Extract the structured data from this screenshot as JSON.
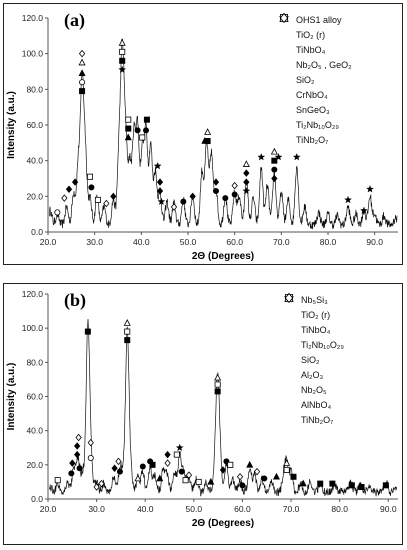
{
  "panels": [
    {
      "id": "a",
      "tag": "(a)",
      "xlabel": "2Θ (Degrees)",
      "ylabel": "Intensity (a.u.)",
      "xlim": [
        20,
        95
      ],
      "ylim": [
        0,
        120
      ],
      "xticks": [
        "20.0",
        "30.0",
        "40.0",
        "50.0",
        "60.0",
        "70.0",
        "80.0",
        "90.0"
      ],
      "yticks": [
        "0.0",
        "20.0",
        "40.0",
        "60.0",
        "80.0",
        "100.0",
        "120.0"
      ],
      "legend": [
        {
          "symbol": "star",
          "label": "OHS1 alloy"
        },
        {
          "symbol": "square-filled",
          "label": "TiO₂ (r)"
        },
        {
          "symbol": "triangle-filled",
          "label": "TiNbO₄"
        },
        {
          "symbol": "circle-filled",
          "label": "Nb₂O₅ , GeO₂"
        },
        {
          "symbol": "circle-open",
          "label": "SiO₂"
        },
        {
          "symbol": "triangle-open",
          "label": "CrNbO₄"
        },
        {
          "symbol": "square-open",
          "label": "SnGeO₃"
        },
        {
          "symbol": "diamond-filled",
          "label": "Ti₂Nb₁₀O₂₉"
        },
        {
          "symbol": "diamond-open",
          "label": "TiNb₂O₇"
        }
      ]
    },
    {
      "id": "b",
      "tag": "(b)",
      "xlabel": "2Θ (Degrees)",
      "ylabel": "Intensity (a.u.)",
      "xlim": [
        20,
        92
      ],
      "ylim": [
        0,
        120
      ],
      "xticks": [
        "20.0",
        "30.0",
        "40.0",
        "50.0",
        "60.0",
        "70.0",
        "80.0",
        "90.0"
      ],
      "yticks": [
        "0.0",
        "20.0",
        "40.0",
        "60.0",
        "80.0",
        "100.0",
        "120.0"
      ],
      "legend": [
        {
          "symbol": "star",
          "label": "Nb₅Si₃"
        },
        {
          "symbol": "square-filled",
          "label": "TiO₂ (r)"
        },
        {
          "symbol": "triangle-filled",
          "label": "TiNbO₄"
        },
        {
          "symbol": "circle-filled",
          "label": "Ti₂Nb₁₀O₂₉"
        },
        {
          "symbol": "circle-open",
          "label": "SiO₂"
        },
        {
          "symbol": "triangle-open",
          "label": "Al₂O₃"
        },
        {
          "symbol": "square-open",
          "label": "Nb₂O₅"
        },
        {
          "symbol": "diamond-filled",
          "label": "AlNbO₄"
        },
        {
          "symbol": "diamond-open",
          "label": "TiNb₂O₇"
        }
      ]
    }
  ],
  "chart_data": [
    {
      "type": "line",
      "panel": "a",
      "xlabel": "2Θ (Degrees)",
      "ylabel": "Intensity (a.u.)",
      "xlim": [
        20,
        95
      ],
      "ylim": [
        0,
        120
      ],
      "grid": false,
      "legend_position": "right",
      "peaks": [
        {
          "x": 20.5,
          "y": 8
        },
        {
          "x": 22,
          "y": 6
        },
        {
          "x": 24,
          "y": 10
        },
        {
          "x": 25.5,
          "y": 18
        },
        {
          "x": 26.5,
          "y": 35
        },
        {
          "x": 27.3,
          "y": 78
        },
        {
          "x": 28,
          "y": 40
        },
        {
          "x": 29,
          "y": 15
        },
        {
          "x": 30.5,
          "y": 16
        },
        {
          "x": 32,
          "y": 10
        },
        {
          "x": 34,
          "y": 14
        },
        {
          "x": 35.2,
          "y": 40
        },
        {
          "x": 35.9,
          "y": 92
        },
        {
          "x": 36.6,
          "y": 50
        },
        {
          "x": 37.5,
          "y": 35
        },
        {
          "x": 38.4,
          "y": 50
        },
        {
          "x": 39.2,
          "y": 55
        },
        {
          "x": 40.2,
          "y": 42
        },
        {
          "x": 41,
          "y": 53
        },
        {
          "x": 42,
          "y": 45
        },
        {
          "x": 43,
          "y": 30
        },
        {
          "x": 44,
          "y": 18
        },
        {
          "x": 45.5,
          "y": 13
        },
        {
          "x": 47,
          "y": 12
        },
        {
          "x": 49,
          "y": 14
        },
        {
          "x": 51,
          "y": 16
        },
        {
          "x": 53,
          "y": 30
        },
        {
          "x": 54,
          "y": 46
        },
        {
          "x": 55,
          "y": 40
        },
        {
          "x": 56,
          "y": 20
        },
        {
          "x": 58,
          "y": 16
        },
        {
          "x": 60,
          "y": 18
        },
        {
          "x": 61,
          "y": 16
        },
        {
          "x": 62.5,
          "y": 25
        },
        {
          "x": 64,
          "y": 15
        },
        {
          "x": 65.7,
          "y": 32
        },
        {
          "x": 67,
          "y": 22
        },
        {
          "x": 68.5,
          "y": 30
        },
        {
          "x": 70,
          "y": 18
        },
        {
          "x": 71.5,
          "y": 14
        },
        {
          "x": 73.3,
          "y": 33
        },
        {
          "x": 75,
          "y": 10
        },
        {
          "x": 78,
          "y": 7
        },
        {
          "x": 80,
          "y": 6
        },
        {
          "x": 82,
          "y": 5
        },
        {
          "x": 84.3,
          "y": 10
        },
        {
          "x": 86,
          "y": 6
        },
        {
          "x": 87.7,
          "y": 8
        },
        {
          "x": 89,
          "y": 16
        },
        {
          "x": 90,
          "y": 6
        },
        {
          "x": 92,
          "y": 5
        },
        {
          "x": 94.5,
          "y": 4
        }
      ],
      "markers": [
        {
          "symbol": "diamond-open",
          "x": 27.3,
          "y": 100
        },
        {
          "symbol": "triangle-open",
          "x": 27.3,
          "y": 95
        },
        {
          "symbol": "triangle-filled",
          "x": 27.3,
          "y": 89
        },
        {
          "symbol": "circle-open",
          "x": 27.3,
          "y": 84
        },
        {
          "symbol": "square-filled",
          "x": 27.3,
          "y": 79
        },
        {
          "symbol": "triangle-open",
          "x": 35.9,
          "y": 106
        },
        {
          "symbol": "square-open",
          "x": 35.9,
          "y": 101
        },
        {
          "symbol": "square-filled",
          "x": 35.9,
          "y": 96
        },
        {
          "symbol": "star",
          "x": 35.9,
          "y": 91
        },
        {
          "symbol": "square-open",
          "x": 37.2,
          "y": 63
        },
        {
          "symbol": "square-filled",
          "x": 37.2,
          "y": 58
        },
        {
          "symbol": "triangle-filled",
          "x": 37.2,
          "y": 53
        },
        {
          "symbol": "circle-filled",
          "x": 39.2,
          "y": 57
        },
        {
          "symbol": "square-open",
          "x": 40.2,
          "y": 53
        },
        {
          "symbol": "square-filled",
          "x": 41.2,
          "y": 63
        },
        {
          "symbol": "circle-filled",
          "x": 41,
          "y": 57
        },
        {
          "symbol": "star",
          "x": 43.5,
          "y": 37
        },
        {
          "symbol": "diamond-filled",
          "x": 44,
          "y": 28
        },
        {
          "symbol": "diamond-filled",
          "x": 44,
          "y": 23
        },
        {
          "symbol": "star",
          "x": 44.3,
          "y": 17
        },
        {
          "symbol": "triangle-open",
          "x": 54.2,
          "y": 56
        },
        {
          "symbol": "triangle-filled",
          "x": 53.6,
          "y": 51
        },
        {
          "symbol": "square-filled",
          "x": 54.2,
          "y": 51
        },
        {
          "symbol": "star",
          "x": 65.7,
          "y": 42
        },
        {
          "symbol": "triangle-open",
          "x": 62.5,
          "y": 38
        },
        {
          "symbol": "diamond-filled",
          "x": 62.5,
          "y": 33
        },
        {
          "symbol": "diamond-filled",
          "x": 62.5,
          "y": 28
        },
        {
          "symbol": "star",
          "x": 62.5,
          "y": 23
        },
        {
          "symbol": "triangle-open",
          "x": 68.5,
          "y": 45
        },
        {
          "symbol": "square-filled",
          "x": 68.5,
          "y": 40
        },
        {
          "symbol": "star",
          "x": 69.4,
          "y": 42
        },
        {
          "symbol": "circle-filled",
          "x": 68.5,
          "y": 35
        },
        {
          "symbol": "diamond-filled",
          "x": 68.5,
          "y": 30
        },
        {
          "symbol": "star",
          "x": 73.3,
          "y": 42
        },
        {
          "symbol": "star",
          "x": 84.3,
          "y": 18
        },
        {
          "symbol": "star",
          "x": 89,
          "y": 24
        },
        {
          "symbol": "star",
          "x": 87.7,
          "y": 12
        },
        {
          "symbol": "circle-open",
          "x": 22,
          "y": 11
        },
        {
          "symbol": "diamond-open",
          "x": 23.5,
          "y": 19
        },
        {
          "symbol": "diamond-filled",
          "x": 24.5,
          "y": 24
        },
        {
          "symbol": "diamond-filled",
          "x": 25.8,
          "y": 28
        },
        {
          "symbol": "square-open",
          "x": 29,
          "y": 31
        },
        {
          "symbol": "circle-filled",
          "x": 29.3,
          "y": 25
        },
        {
          "symbol": "square-open",
          "x": 30.7,
          "y": 18
        },
        {
          "symbol": "diamond-open",
          "x": 32.5,
          "y": 16
        },
        {
          "symbol": "diamond-filled",
          "x": 34,
          "y": 20
        },
        {
          "symbol": "diamond-open",
          "x": 47,
          "y": 14
        },
        {
          "symbol": "circle-filled",
          "x": 49,
          "y": 17
        },
        {
          "symbol": "diamond-filled",
          "x": 51,
          "y": 20
        },
        {
          "symbol": "circle-filled",
          "x": 56,
          "y": 23
        },
        {
          "symbol": "diamond-filled",
          "x": 56,
          "y": 28
        },
        {
          "symbol": "circle-filled",
          "x": 58,
          "y": 19
        },
        {
          "symbol": "circle-filled",
          "x": 60,
          "y": 21
        },
        {
          "symbol": "diamond-open",
          "x": 60,
          "y": 26
        }
      ]
    },
    {
      "type": "line",
      "panel": "b",
      "xlabel": "2Θ (Degrees)",
      "ylabel": "Intensity (a.u.)",
      "xlim": [
        20,
        92
      ],
      "ylim": [
        0,
        120
      ],
      "grid": false,
      "legend_position": "right",
      "peaks": [
        {
          "x": 20.5,
          "y": 3
        },
        {
          "x": 22,
          "y": 5
        },
        {
          "x": 24,
          "y": 6
        },
        {
          "x": 25.3,
          "y": 14
        },
        {
          "x": 26.2,
          "y": 20
        },
        {
          "x": 27.2,
          "y": 12
        },
        {
          "x": 28.2,
          "y": 96
        },
        {
          "x": 28.8,
          "y": 20
        },
        {
          "x": 30,
          "y": 6
        },
        {
          "x": 31.5,
          "y": 5
        },
        {
          "x": 33.5,
          "y": 8
        },
        {
          "x": 34.8,
          "y": 14
        },
        {
          "x": 35.5,
          "y": 10
        },
        {
          "x": 36.3,
          "y": 94
        },
        {
          "x": 37,
          "y": 12
        },
        {
          "x": 38.5,
          "y": 8
        },
        {
          "x": 39.5,
          "y": 12
        },
        {
          "x": 41,
          "y": 15
        },
        {
          "x": 42,
          "y": 10
        },
        {
          "x": 43.7,
          "y": 14
        },
        {
          "x": 44.5,
          "y": 10
        },
        {
          "x": 46,
          "y": 12
        },
        {
          "x": 47.1,
          "y": 24
        },
        {
          "x": 48,
          "y": 12
        },
        {
          "x": 49,
          "y": 9
        },
        {
          "x": 50.5,
          "y": 8
        },
        {
          "x": 52.5,
          "y": 6
        },
        {
          "x": 54.3,
          "y": 12
        },
        {
          "x": 54.9,
          "y": 65
        },
        {
          "x": 55.5,
          "y": 12
        },
        {
          "x": 56.7,
          "y": 15
        },
        {
          "x": 58,
          "y": 8
        },
        {
          "x": 59.5,
          "y": 6
        },
        {
          "x": 61.5,
          "y": 14
        },
        {
          "x": 62.5,
          "y": 10
        },
        {
          "x": 64,
          "y": 8
        },
        {
          "x": 66,
          "y": 6
        },
        {
          "x": 68.5,
          "y": 10
        },
        {
          "x": 69.1,
          "y": 16
        },
        {
          "x": 70,
          "y": 12
        },
        {
          "x": 72,
          "y": 5
        },
        {
          "x": 74,
          "y": 6
        },
        {
          "x": 76,
          "y": 5
        },
        {
          "x": 79,
          "y": 5
        },
        {
          "x": 82.3,
          "y": 6
        },
        {
          "x": 84.2,
          "y": 5
        },
        {
          "x": 86,
          "y": 4
        },
        {
          "x": 89.5,
          "y": 6
        },
        {
          "x": 91.5,
          "y": 3
        }
      ],
      "markers": [
        {
          "symbol": "square-filled",
          "x": 28.2,
          "y": 98
        },
        {
          "symbol": "triangle-open",
          "x": 36.3,
          "y": 103
        },
        {
          "symbol": "square-open",
          "x": 36.3,
          "y": 98
        },
        {
          "symbol": "square-filled",
          "x": 36.3,
          "y": 93
        },
        {
          "symbol": "triangle-open",
          "x": 54.9,
          "y": 71
        },
        {
          "symbol": "square-open",
          "x": 54.9,
          "y": 67
        },
        {
          "symbol": "square-filled",
          "x": 54.9,
          "y": 63
        },
        {
          "symbol": "square-open",
          "x": 22,
          "y": 11
        },
        {
          "symbol": "circle-filled",
          "x": 24.8,
          "y": 15
        },
        {
          "symbol": "diamond-filled",
          "x": 25,
          "y": 21
        },
        {
          "symbol": "diamond-filled",
          "x": 26,
          "y": 26
        },
        {
          "symbol": "diamond-filled",
          "x": 26,
          "y": 31
        },
        {
          "symbol": "diamond-open",
          "x": 26.3,
          "y": 36
        },
        {
          "symbol": "circle-filled",
          "x": 26.5,
          "y": 18
        },
        {
          "symbol": "diamond-open",
          "x": 28.8,
          "y": 33
        },
        {
          "symbol": "circle-open",
          "x": 28.8,
          "y": 24
        },
        {
          "symbol": "diamond-open",
          "x": 30,
          "y": 7
        },
        {
          "symbol": "diamond-open",
          "x": 31,
          "y": 9
        },
        {
          "symbol": "diamond-filled",
          "x": 33.7,
          "y": 18
        },
        {
          "symbol": "diamond-open",
          "x": 34.5,
          "y": 22
        },
        {
          "symbol": "circle-filled",
          "x": 34.8,
          "y": 16
        },
        {
          "symbol": "triangle-open",
          "x": 38.5,
          "y": 12
        },
        {
          "symbol": "circle-filled",
          "x": 39.5,
          "y": 19
        },
        {
          "symbol": "circle-filled",
          "x": 41,
          "y": 22
        },
        {
          "symbol": "square-filled",
          "x": 41.5,
          "y": 20
        },
        {
          "symbol": "triangle-filled",
          "x": 43,
          "y": 12
        },
        {
          "symbol": "diamond-filled",
          "x": 44.6,
          "y": 26
        },
        {
          "symbol": "diamond-open",
          "x": 44.6,
          "y": 21
        },
        {
          "symbol": "square-open",
          "x": 46.5,
          "y": 26
        },
        {
          "symbol": "star",
          "x": 47.1,
          "y": 30
        },
        {
          "symbol": "circle-filled",
          "x": 47.5,
          "y": 16
        },
        {
          "symbol": "square-open",
          "x": 48.3,
          "y": 11
        },
        {
          "symbol": "diamond-open",
          "x": 49,
          "y": 14
        },
        {
          "symbol": "square-open",
          "x": 51,
          "y": 10
        },
        {
          "symbol": "triangle-filled",
          "x": 53.5,
          "y": 10
        },
        {
          "symbol": "diamond-filled",
          "x": 56,
          "y": 17
        },
        {
          "symbol": "circle-filled",
          "x": 56.7,
          "y": 22
        },
        {
          "symbol": "square-open",
          "x": 57.5,
          "y": 20
        },
        {
          "symbol": "diamond-open",
          "x": 59.5,
          "y": 13
        },
        {
          "symbol": "circle-filled",
          "x": 60,
          "y": 8
        },
        {
          "symbol": "triangle-filled",
          "x": 61.5,
          "y": 20
        },
        {
          "symbol": "diamond-open",
          "x": 63,
          "y": 16
        },
        {
          "symbol": "circle-filled",
          "x": 64.5,
          "y": 12
        },
        {
          "symbol": "triangle-filled",
          "x": 67,
          "y": 13
        },
        {
          "symbol": "triangle-open",
          "x": 69.1,
          "y": 21
        },
        {
          "symbol": "square-open",
          "x": 69.1,
          "y": 17
        },
        {
          "symbol": "square-filled",
          "x": 70.5,
          "y": 13
        },
        {
          "symbol": "triangle-filled",
          "x": 72.5,
          "y": 9
        },
        {
          "symbol": "square-filled",
          "x": 76,
          "y": 9
        },
        {
          "symbol": "square-filled",
          "x": 78.5,
          "y": 9
        },
        {
          "symbol": "square-filled",
          "x": 82.5,
          "y": 8
        },
        {
          "symbol": "square-filled",
          "x": 84.5,
          "y": 7
        },
        {
          "symbol": "square-filled",
          "x": 89.5,
          "y": 8
        }
      ]
    }
  ]
}
